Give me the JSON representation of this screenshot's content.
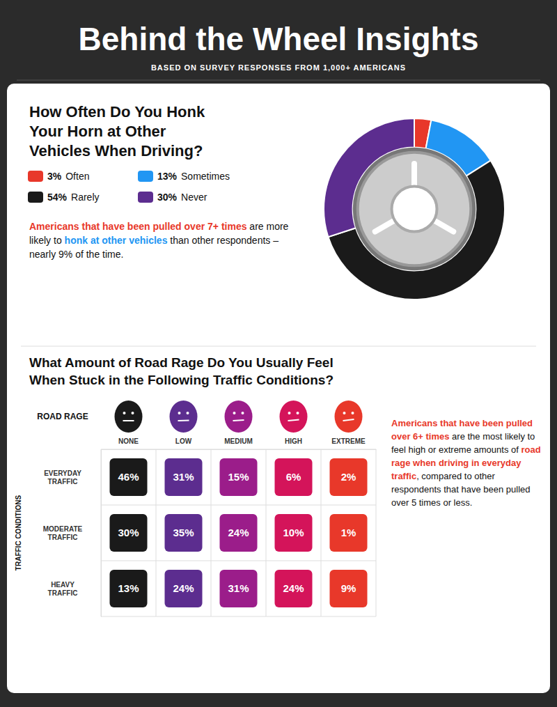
{
  "title": "Behind the Wheel Insights",
  "subtitle": "BASED ON SURVEY RESPONSES FROM 1,000+ AMERICANS",
  "chart_data": [
    {
      "type": "pie",
      "title": "How Often Do You Honk\nYour Horn at Other\nVehicles When Driving?",
      "categories": [
        "Often",
        "Sometimes",
        "Rarely",
        "Never"
      ],
      "values": [
        3,
        13,
        54,
        30
      ],
      "value_labels": [
        "3%",
        "13%",
        "54%",
        "30%"
      ],
      "colors": [
        "#e8382a",
        "#2196f3",
        "#1a1a1a",
        "#5c2d8f"
      ],
      "legend": "left",
      "annotations": [
        [
          {
            "text": "Americans that have been pulled over 7+ times",
            "color": "#e8382a"
          },
          {
            "text": " are more likely to "
          },
          {
            "text": "honk at other vehicles",
            "color": "#2196f3"
          },
          {
            "text": " than other respondents – nearly 9% of the time."
          }
        ]
      ]
    },
    {
      "type": "heatmap",
      "title": "What Amount of Road Rage Do You Usually Feel\nWhen Stuck in the Following Traffic Conditions?",
      "x_label": "ROAD RAGE",
      "y_label": "TRAFFIC CONDITIONS",
      "categories": [
        "NONE",
        "LOW",
        "MEDIUM",
        "HIGH",
        "EXTREME"
      ],
      "rows": [
        "EVERYDAY\nTRAFFIC",
        "MODERATE\nTRAFFIC",
        "HEAVY\nTRAFFIC"
      ],
      "values": [
        [
          46,
          31,
          15,
          6,
          2
        ],
        [
          30,
          35,
          24,
          10,
          1
        ],
        [
          13,
          24,
          31,
          24,
          9
        ]
      ],
      "value_labels": [
        [
          "46%",
          "31%",
          "15%",
          "6%",
          "2%"
        ],
        [
          "30%",
          "35%",
          "24%",
          "10%",
          "1%"
        ],
        [
          "13%",
          "24%",
          "31%",
          "24%",
          "9%"
        ]
      ],
      "colors": [
        [
          "#1a1a1a",
          "#5c2d8f",
          "#9b1d8a",
          "#d4145a",
          "#e8382a"
        ],
        [
          "#1a1a1a",
          "#5c2d8f",
          "#9b1d8a",
          "#d4145a",
          "#e8382a"
        ],
        [
          "#1a1a1a",
          "#5c2d8f",
          "#9b1d8a",
          "#d4145a",
          "#e8382a"
        ]
      ],
      "grid": true,
      "data_labels": true,
      "annotations": [
        [
          {
            "text": "Americans that have been pulled over 6+ times",
            "color": "#e8382a"
          },
          {
            "text": " are the most likely to feel high or extreme amounts of "
          },
          {
            "text": "road rage when driving in everyday traffic",
            "color": "#e8382a"
          },
          {
            "text": ", compared to other respondents that have been pulled over 5 times or less."
          }
        ]
      ]
    }
  ]
}
